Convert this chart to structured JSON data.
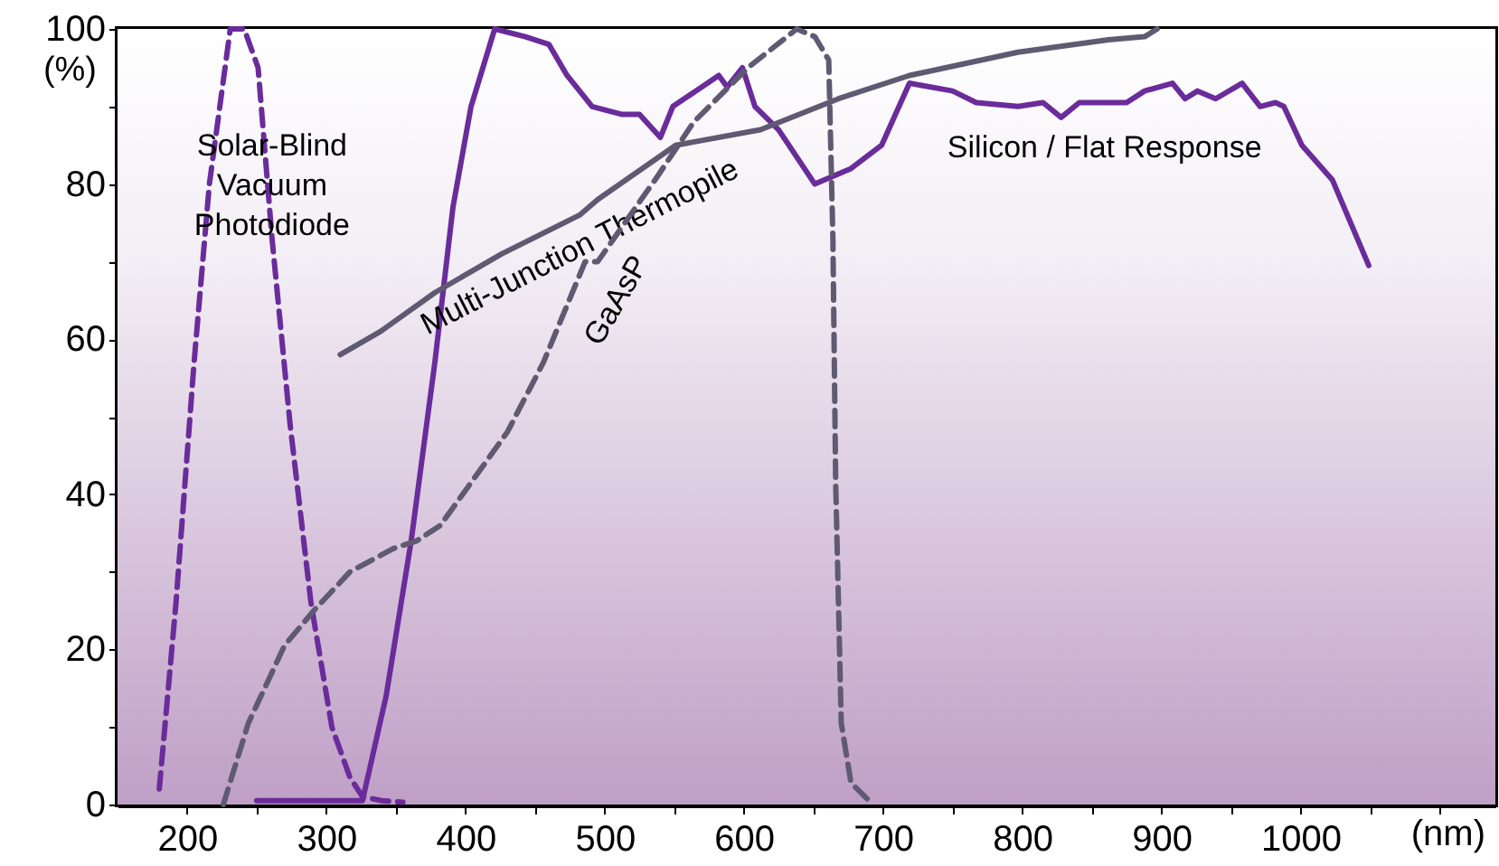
{
  "chart_data": {
    "type": "line",
    "xlabel": "(nm)",
    "ylabel": "(%)",
    "xlim": [
      150,
      1140
    ],
    "ylim": [
      0,
      100
    ],
    "xticks": [
      200,
      {
        "value": 250,
        "label": null
      },
      300,
      {
        "value": 350,
        "label": null
      },
      400,
      {
        "value": 450,
        "label": null
      },
      500,
      {
        "value": 550,
        "label": null
      },
      600,
      {
        "value": 650,
        "label": null
      },
      700,
      {
        "value": 750,
        "label": null
      },
      800,
      {
        "value": 850,
        "label": null
      },
      900,
      {
        "value": 950,
        "label": null
      },
      1000,
      {
        "value": 1050,
        "label": null
      },
      {
        "value": 1100,
        "label": null
      }
    ],
    "yticks": [
      0,
      {
        "value": 10,
        "label": null
      },
      20,
      {
        "value": 30,
        "label": null
      },
      40,
      {
        "value": 50,
        "label": null
      },
      60,
      {
        "value": 70,
        "label": null
      },
      80,
      {
        "value": 90,
        "label": null
      },
      100
    ],
    "grid": false,
    "marker": "none",
    "series": [
      {
        "name": "Solar-Blind Vacuum Photodiode",
        "color": "#6a2c9a",
        "line_style": "dashed",
        "x": [
          180,
          192,
          205,
          216,
          231,
          241,
          251,
          261,
          274,
          289,
          304,
          317,
          326,
          340,
          355
        ],
        "values": [
          2,
          26,
          57,
          80,
          100,
          100,
          95,
          73,
          49,
          26,
          10,
          3.5,
          1,
          0.5,
          0.3
        ]
      },
      {
        "name": "Silicon / Flat Response",
        "color": "#6a2c9a",
        "line_style": "solid",
        "x": [
          250,
          290,
          326,
          343,
          361,
          378,
          391,
          404,
          421,
          443,
          460,
          473,
          491,
          512,
          525,
          540,
          549,
          582,
          588,
          599,
          608,
          625,
          651,
          677,
          699,
          719,
          750,
          767,
          797,
          815,
          828,
          841,
          875,
          888,
          908,
          917,
          926,
          939,
          958,
          971,
          982,
          988,
          1001,
          1023,
          1049
        ],
        "values": [
          0.5,
          0.5,
          0.5,
          14,
          34,
          57,
          77,
          90,
          100,
          99,
          98,
          94,
          90,
          89,
          89,
          86,
          90,
          94,
          92.5,
          95,
          90,
          87,
          80,
          82,
          85,
          93,
          92,
          90.5,
          90,
          90.5,
          88.6,
          90.5,
          90.5,
          92,
          93,
          91,
          92,
          91,
          93,
          90,
          90.5,
          90,
          85,
          80.5,
          69.5
        ]
      },
      {
        "name": "Multi-Junction Thermopile",
        "color": "#5f5a72",
        "line_style": "solid",
        "x": [
          310,
          339,
          378,
          426,
          482,
          495,
          551,
          612,
          668,
          719,
          797,
          862,
          888,
          897
        ],
        "values": [
          58,
          61,
          66,
          71,
          76,
          78,
          85,
          87,
          91,
          94,
          97,
          98.6,
          99,
          100
        ]
      },
      {
        "name": "GaAsP",
        "color": "#5f5a72",
        "line_style": "dashed",
        "x": [
          226,
          244,
          270,
          291,
          317,
          348,
          365,
          382,
          404,
          430,
          456,
          486,
          495,
          538,
          564,
          603,
          638,
          651,
          661,
          664,
          666,
          670,
          677,
          690
        ],
        "values": [
          0,
          10.5,
          20.5,
          25,
          30,
          33,
          34,
          36,
          41.5,
          48,
          57,
          70,
          70,
          81,
          88,
          95,
          100,
          99,
          96,
          73,
          41.5,
          10.5,
          2.8,
          0.5
        ]
      }
    ]
  }
}
